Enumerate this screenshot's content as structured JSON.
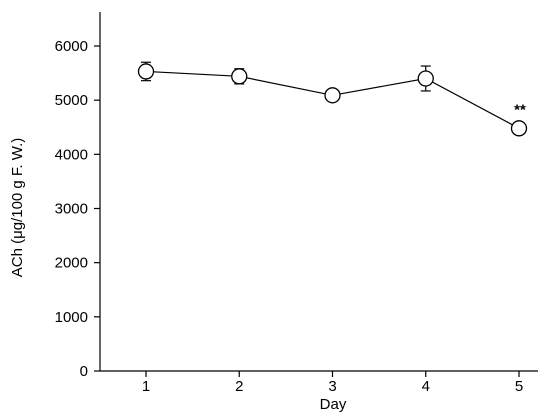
{
  "chart_data": {
    "type": "line",
    "xlabel": "Day",
    "ylabel": "ACh (μg/100 g F. W.)",
    "x": [
      1,
      2,
      3,
      4,
      5
    ],
    "x_tick_labels": [
      "1",
      "2",
      "3",
      "4",
      "5"
    ],
    "xlim": [
      0.5,
      5.2
    ],
    "ylim": [
      0,
      6400
    ],
    "y_ticks": [
      0,
      1000,
      2000,
      3000,
      4000,
      5000,
      6000
    ],
    "y_tick_labels": [
      "0",
      "1000",
      "2000",
      "3000",
      "4000",
      "5000",
      "6000"
    ],
    "grid": false,
    "marker": "open-circle",
    "series": [
      {
        "values": [
          5530,
          5440,
          5090,
          5400,
          4480
        ],
        "error": [
          170,
          140,
          40,
          230,
          40
        ],
        "color": "#000000"
      }
    ],
    "annotations": [
      {
        "x": 5,
        "y": 4480,
        "text": "**"
      }
    ]
  }
}
